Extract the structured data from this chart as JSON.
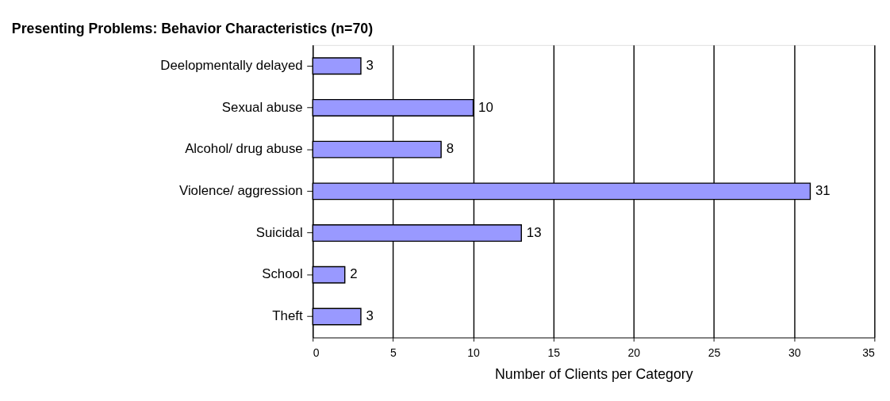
{
  "chart_data": {
    "type": "bar",
    "orientation": "horizontal",
    "title": "Presenting Problems: Behavior Characteristics (n=70)",
    "xlabel": "Number of Clients per Category",
    "categories": [
      "Deelopmentally delayed",
      "Sexual abuse",
      "Alcohol/ drug abuse",
      "Violence/ aggression",
      "Suicidal",
      "School",
      "Theft"
    ],
    "values": [
      3,
      10,
      8,
      31,
      13,
      2,
      3
    ],
    "color": "#9999ff",
    "xlim": [
      0,
      35
    ],
    "xticks": [
      0,
      5,
      10,
      15,
      20,
      25,
      30,
      35
    ],
    "grid": "x",
    "data_labels": true
  }
}
